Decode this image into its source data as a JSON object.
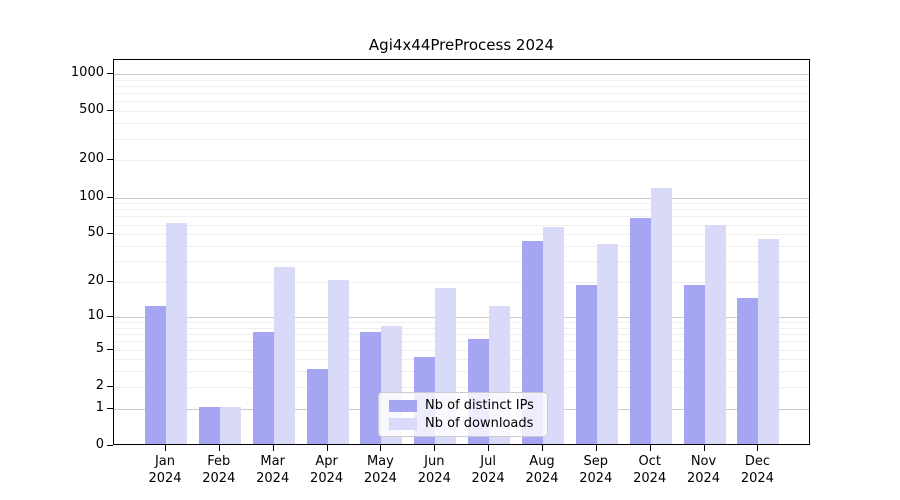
{
  "title": "Agi4x44PreProcess 2024",
  "chart_data": {
    "type": "bar",
    "title": "Agi4x44PreProcess 2024",
    "x_labels": [
      {
        "month": "Jan",
        "year": "2024"
      },
      {
        "month": "Feb",
        "year": "2024"
      },
      {
        "month": "Mar",
        "year": "2024"
      },
      {
        "month": "Apr",
        "year": "2024"
      },
      {
        "month": "May",
        "year": "2024"
      },
      {
        "month": "Jun",
        "year": "2024"
      },
      {
        "month": "Jul",
        "year": "2024"
      },
      {
        "month": "Aug",
        "year": "2024"
      },
      {
        "month": "Sep",
        "year": "2024"
      },
      {
        "month": "Oct",
        "year": "2024"
      },
      {
        "month": "Nov",
        "year": "2024"
      },
      {
        "month": "Dec",
        "year": "2024"
      }
    ],
    "categories": [
      "Jan 2024",
      "Feb 2024",
      "Mar 2024",
      "Apr 2024",
      "May 2024",
      "Jun 2024",
      "Jul 2024",
      "Aug 2024",
      "Sep 2024",
      "Oct 2024",
      "Nov 2024",
      "Dec 2024"
    ],
    "series": [
      {
        "name": "Nb of distinct IPs",
        "color": "#a5a5f2",
        "values": [
          12,
          1,
          7,
          3,
          7,
          4,
          6,
          42,
          18,
          65,
          18,
          14
        ]
      },
      {
        "name": "Nb of downloads",
        "color": "#d9d9f8",
        "values": [
          60,
          1,
          26,
          20,
          8,
          17,
          12,
          55,
          40,
          115,
          57,
          44
        ]
      }
    ],
    "y_ticks": [
      0,
      1,
      2,
      5,
      10,
      20,
      50,
      100,
      200,
      500,
      1000
    ],
    "y_scale": "log1p",
    "ylim": [
      0,
      1300
    ],
    "grid": true,
    "grid_major_color": "#cccccc",
    "grid_minor_color": "#efefef",
    "legend_position": "bottom-center"
  },
  "legend": {
    "items": [
      {
        "label": "Nb of distinct IPs",
        "color": "#a5a5f2"
      },
      {
        "label": "Nb of downloads",
        "color": "#d9d9f8"
      }
    ]
  }
}
